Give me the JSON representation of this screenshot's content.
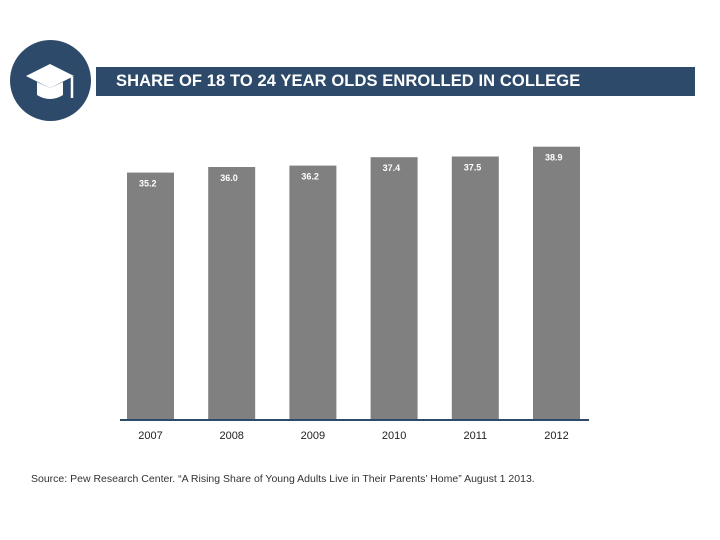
{
  "header": {
    "title": "SHARE OF 18 TO 24 YEAR OLDS ENROLLED IN COLLEGE",
    "logo_icon": "graduation-cap-icon",
    "accent_color": "#2e4a6b"
  },
  "chart_data": {
    "type": "bar",
    "title": "SHARE OF 18 TO 24 YEAR OLDS ENROLLED IN COLLEGE",
    "xlabel": "",
    "ylabel": "",
    "categories": [
      "2007",
      "2008",
      "2009",
      "2010",
      "2011",
      "2012"
    ],
    "values": [
      35.2,
      36.0,
      36.2,
      37.4,
      37.5,
      38.9
    ],
    "value_labels": [
      "35.2",
      "36.0",
      "36.2",
      "37.4",
      "37.5",
      "38.9"
    ],
    "ylim": [
      0,
      40
    ],
    "grid": false,
    "legend": "none",
    "bar_color": "#808080",
    "axis_color": "#2e4a6b"
  },
  "footer": {
    "source": "Source: Pew Research Center. “A Rising Share of Young Adults Live in Their Parents’ Home” August 1 2013."
  }
}
